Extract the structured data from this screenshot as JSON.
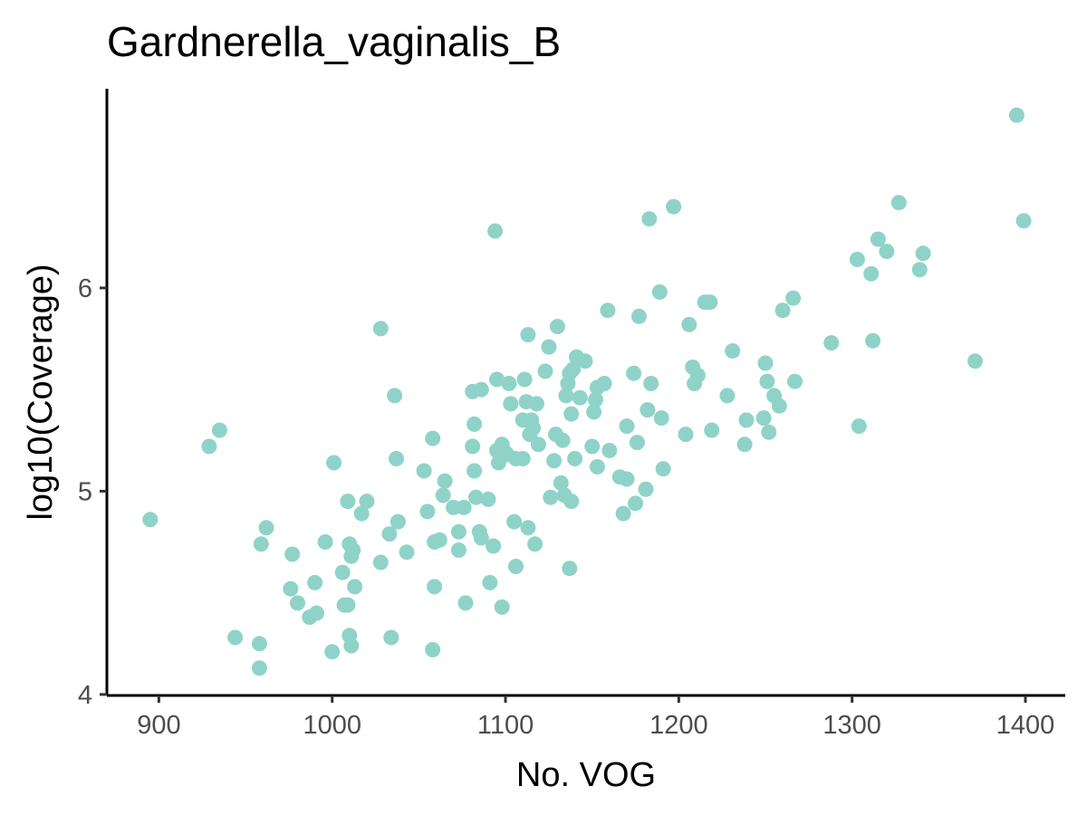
{
  "chart_data": {
    "type": "scatter",
    "title": "Gardnerella_vaginalis_B",
    "xlabel": "No. VOG",
    "ylabel": "log10(Coverage)",
    "xlim": [
      870,
      1423
    ],
    "ylim": [
      3.995,
      6.98
    ],
    "xticks": [
      900,
      1000,
      1100,
      1200,
      1300,
      1400
    ],
    "yticks": [
      4,
      5,
      6
    ],
    "point_color": "#8fd3c8",
    "grid": false,
    "legend": "none",
    "series": [
      {
        "points": [
          [
            895,
            4.86
          ],
          [
            929,
            5.22
          ],
          [
            935,
            5.3
          ],
          [
            944,
            4.28
          ],
          [
            958,
            4.25
          ],
          [
            958,
            4.13
          ],
          [
            959,
            4.74
          ],
          [
            962,
            4.82
          ],
          [
            976,
            4.52
          ],
          [
            977,
            4.69
          ],
          [
            980,
            4.45
          ],
          [
            987,
            4.38
          ],
          [
            990,
            4.55
          ],
          [
            991,
            4.4
          ],
          [
            996,
            4.75
          ],
          [
            1000,
            4.21
          ],
          [
            1001,
            5.14
          ],
          [
            1006,
            4.6
          ],
          [
            1007,
            4.44
          ],
          [
            1009,
            4.44
          ],
          [
            1009,
            4.95
          ],
          [
            1010,
            4.29
          ],
          [
            1010,
            4.74
          ],
          [
            1011,
            4.68
          ],
          [
            1011,
            4.24
          ],
          [
            1012,
            4.71
          ],
          [
            1013,
            4.53
          ],
          [
            1017,
            4.89
          ],
          [
            1020,
            4.95
          ],
          [
            1028,
            4.65
          ],
          [
            1028,
            5.8
          ],
          [
            1033,
            4.79
          ],
          [
            1034,
            4.28
          ],
          [
            1036,
            5.47
          ],
          [
            1037,
            5.16
          ],
          [
            1038,
            4.85
          ],
          [
            1043,
            4.7
          ],
          [
            1053,
            5.1
          ],
          [
            1055,
            4.9
          ],
          [
            1058,
            5.26
          ],
          [
            1058,
            4.22
          ],
          [
            1059,
            4.53
          ],
          [
            1059,
            4.75
          ],
          [
            1062,
            4.76
          ],
          [
            1064,
            4.98
          ],
          [
            1065,
            5.05
          ],
          [
            1070,
            4.92
          ],
          [
            1073,
            4.71
          ],
          [
            1073,
            4.8
          ],
          [
            1076,
            4.92
          ],
          [
            1077,
            4.45
          ],
          [
            1081,
            5.49
          ],
          [
            1081,
            5.22
          ],
          [
            1082,
            5.1
          ],
          [
            1082,
            5.33
          ],
          [
            1083,
            4.97
          ],
          [
            1085,
            4.8
          ],
          [
            1086,
            4.77
          ],
          [
            1086,
            5.5
          ],
          [
            1090,
            4.96
          ],
          [
            1091,
            4.55
          ],
          [
            1093,
            4.73
          ],
          [
            1094,
            6.28
          ],
          [
            1095,
            5.55
          ],
          [
            1095,
            5.2
          ],
          [
            1096,
            5.14
          ],
          [
            1098,
            4.43
          ],
          [
            1098,
            5.23
          ],
          [
            1100,
            5.19
          ],
          [
            1101,
            5.18
          ],
          [
            1102,
            5.53
          ],
          [
            1103,
            5.43
          ],
          [
            1105,
            4.85
          ],
          [
            1106,
            4.63
          ],
          [
            1106,
            5.16
          ],
          [
            1110,
            5.35
          ],
          [
            1110,
            5.16
          ],
          [
            1111,
            5.55
          ],
          [
            1112,
            5.44
          ],
          [
            1113,
            5.77
          ],
          [
            1113,
            4.82
          ],
          [
            1114,
            5.28
          ],
          [
            1115,
            5.35
          ],
          [
            1116,
            5.31
          ],
          [
            1117,
            4.74
          ],
          [
            1118,
            5.43
          ],
          [
            1119,
            5.23
          ],
          [
            1123,
            5.59
          ],
          [
            1125,
            5.71
          ],
          [
            1126,
            4.97
          ],
          [
            1128,
            5.15
          ],
          [
            1129,
            5.28
          ],
          [
            1130,
            5.81
          ],
          [
            1132,
            5.04
          ],
          [
            1133,
            5.25
          ],
          [
            1134,
            4.98
          ],
          [
            1135,
            5.47
          ],
          [
            1136,
            5.53
          ],
          [
            1137,
            4.62
          ],
          [
            1137,
            5.58
          ],
          [
            1138,
            4.95
          ],
          [
            1138,
            5.38
          ],
          [
            1139,
            5.6
          ],
          [
            1140,
            5.16
          ],
          [
            1141,
            5.66
          ],
          [
            1143,
            5.46
          ],
          [
            1146,
            5.64
          ],
          [
            1150,
            5.22
          ],
          [
            1151,
            5.39
          ],
          [
            1152,
            5.45
          ],
          [
            1153,
            5.51
          ],
          [
            1153,
            5.12
          ],
          [
            1157,
            5.53
          ],
          [
            1159,
            5.89
          ],
          [
            1160,
            5.2
          ],
          [
            1166,
            5.07
          ],
          [
            1168,
            4.89
          ],
          [
            1170,
            5.06
          ],
          [
            1170,
            5.32
          ],
          [
            1174,
            5.58
          ],
          [
            1175,
            4.94
          ],
          [
            1176,
            5.24
          ],
          [
            1177,
            5.86
          ],
          [
            1181,
            5.01
          ],
          [
            1182,
            5.4
          ],
          [
            1183,
            6.34
          ],
          [
            1184,
            5.53
          ],
          [
            1189,
            5.98
          ],
          [
            1190,
            5.36
          ],
          [
            1191,
            5.11
          ],
          [
            1197,
            6.4
          ],
          [
            1204,
            5.28
          ],
          [
            1206,
            5.82
          ],
          [
            1208,
            5.61
          ],
          [
            1209,
            5.53
          ],
          [
            1211,
            5.57
          ],
          [
            1215,
            5.93
          ],
          [
            1218,
            5.93
          ],
          [
            1219,
            5.3
          ],
          [
            1228,
            5.47
          ],
          [
            1231,
            5.69
          ],
          [
            1238,
            5.23
          ],
          [
            1239,
            5.35
          ],
          [
            1249,
            5.36
          ],
          [
            1250,
            5.63
          ],
          [
            1251,
            5.54
          ],
          [
            1252,
            5.29
          ],
          [
            1255,
            5.47
          ],
          [
            1258,
            5.42
          ],
          [
            1260,
            5.89
          ],
          [
            1266,
            5.95
          ],
          [
            1267,
            5.54
          ],
          [
            1288,
            5.73
          ],
          [
            1303,
            6.14
          ],
          [
            1304,
            5.32
          ],
          [
            1311,
            6.07
          ],
          [
            1312,
            5.74
          ],
          [
            1315,
            6.24
          ],
          [
            1320,
            6.18
          ],
          [
            1327,
            6.42
          ],
          [
            1339,
            6.09
          ],
          [
            1341,
            6.17
          ],
          [
            1371,
            5.64
          ],
          [
            1395,
            6.85
          ],
          [
            1399,
            6.33
          ]
        ]
      }
    ]
  }
}
